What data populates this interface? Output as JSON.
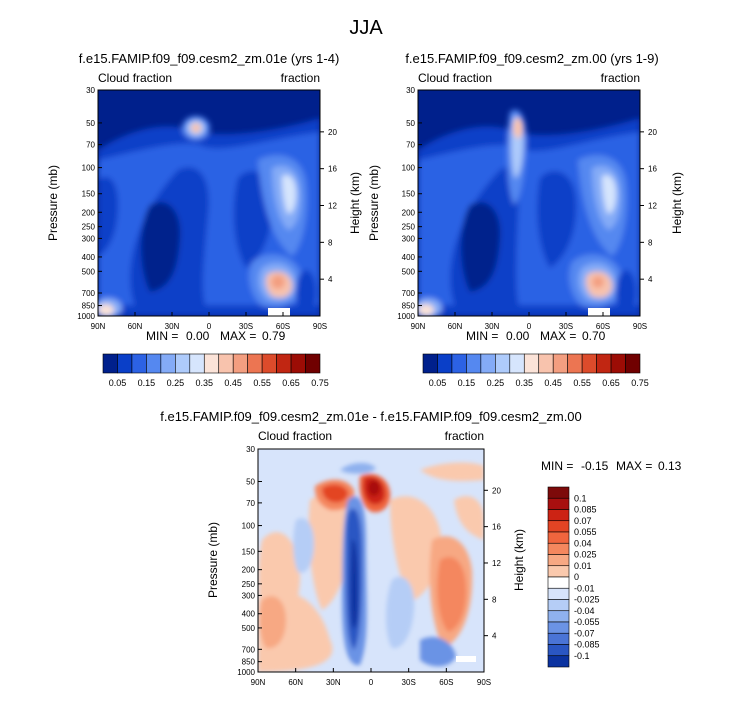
{
  "page_title": "JJA",
  "colors": {
    "background": "#ffffff",
    "field_base_dark": "#00208c",
    "frame": "#000000"
  },
  "chart_data": [
    {
      "type": "heatmap",
      "id": "panel_a",
      "title": "f.e15.FAMIP.f09_f09.cesm2_zm.01e (yrs 1-4)",
      "left_label": "Cloud fraction",
      "right_label": "fraction",
      "xlabel": "",
      "ylabel": "Pressure (mb)",
      "y2label": "Height (km)",
      "x_ticks": [
        "90N",
        "60N",
        "30N",
        "0",
        "30S",
        "60S",
        "90S"
      ],
      "y_ticks": [
        "30",
        "50",
        "70",
        "100",
        "150",
        "200",
        "250",
        "300",
        "400",
        "500",
        "700",
        "850",
        "1000"
      ],
      "y2_ticks": [
        "20",
        "16",
        "12",
        "8",
        "4"
      ],
      "stats": {
        "min_label": "MIN =",
        "min": "0.00",
        "max_label": "MAX =",
        "max": "0.79"
      },
      "colorbar": {
        "orientation": "horizontal",
        "labels": [
          "0.05",
          "0.15",
          "0.25",
          "0.35",
          "0.45",
          "0.55",
          "0.65",
          "0.75"
        ],
        "colors": [
          "#00208c",
          "#0a3fc8",
          "#2c62e4",
          "#5588f0",
          "#84abf7",
          "#aecbfb",
          "#d6e5fd",
          "#fbe3d8",
          "#f8c3ad",
          "#f39e80",
          "#ec7552",
          "#dc4b2b",
          "#c12612",
          "#9c0c05",
          "#700000"
        ]
      }
    },
    {
      "type": "heatmap",
      "id": "panel_b",
      "title": "f.e15.FAMIP.f09_f09.cesm2_zm.00 (yrs 1-9)",
      "left_label": "Cloud fraction",
      "right_label": "fraction",
      "xlabel": "",
      "ylabel": "Pressure (mb)",
      "y2label": "Height (km)",
      "x_ticks": [
        "90N",
        "60N",
        "30N",
        "0",
        "30S",
        "60S",
        "90S"
      ],
      "y_ticks": [
        "30",
        "50",
        "70",
        "100",
        "150",
        "200",
        "250",
        "300",
        "400",
        "500",
        "700",
        "850",
        "1000"
      ],
      "y2_ticks": [
        "20",
        "16",
        "12",
        "8",
        "4"
      ],
      "stats": {
        "min_label": "MIN =",
        "min": "0.00",
        "max_label": "MAX =",
        "max": "0.70"
      },
      "colorbar": {
        "orientation": "horizontal",
        "labels": [
          "0.05",
          "0.15",
          "0.25",
          "0.35",
          "0.45",
          "0.55",
          "0.65",
          "0.75"
        ],
        "colors": [
          "#00208c",
          "#0a3fc8",
          "#2c62e4",
          "#5588f0",
          "#84abf7",
          "#aecbfb",
          "#d6e5fd",
          "#fbe3d8",
          "#f8c3ad",
          "#f39e80",
          "#ec7552",
          "#dc4b2b",
          "#c12612",
          "#9c0c05",
          "#700000"
        ]
      }
    },
    {
      "type": "heatmap",
      "id": "panel_diff",
      "title": "f.e15.FAMIP.f09_f09.cesm2_zm.01e - f.e15.FAMIP.f09_f09.cesm2_zm.00",
      "left_label": "Cloud fraction",
      "right_label": "fraction",
      "xlabel": "",
      "ylabel": "Pressure (mb)",
      "y2label": "Height (km)",
      "x_ticks": [
        "90N",
        "60N",
        "30N",
        "0",
        "30S",
        "60S",
        "90S"
      ],
      "y_ticks": [
        "30",
        "50",
        "70",
        "100",
        "150",
        "200",
        "250",
        "300",
        "400",
        "500",
        "700",
        "850",
        "1000"
      ],
      "y2_ticks": [
        "20",
        "16",
        "12",
        "8",
        "4"
      ],
      "stats": {
        "min_label": "MIN =",
        "min": "-0.15",
        "max_label": "MAX =",
        "max": "0.13"
      },
      "colorbar": {
        "orientation": "vertical",
        "labels": [
          "0.1",
          "0.085",
          "0.07",
          "0.055",
          "0.04",
          "0.025",
          "0.01",
          "0",
          "-0.01",
          "-0.025",
          "-0.04",
          "-0.055",
          "-0.07",
          "-0.085",
          "-0.1"
        ],
        "colors": [
          "#7d0a0a",
          "#a80f0f",
          "#cc2314",
          "#e34424",
          "#f0653e",
          "#f4875e",
          "#f7a883",
          "#fac9ad",
          "#ffffff",
          "#d7e4fb",
          "#b5cdf6",
          "#8fb1ee",
          "#6b93e5",
          "#4a74d6",
          "#2a56c3",
          "#0b32a0"
        ]
      }
    }
  ]
}
